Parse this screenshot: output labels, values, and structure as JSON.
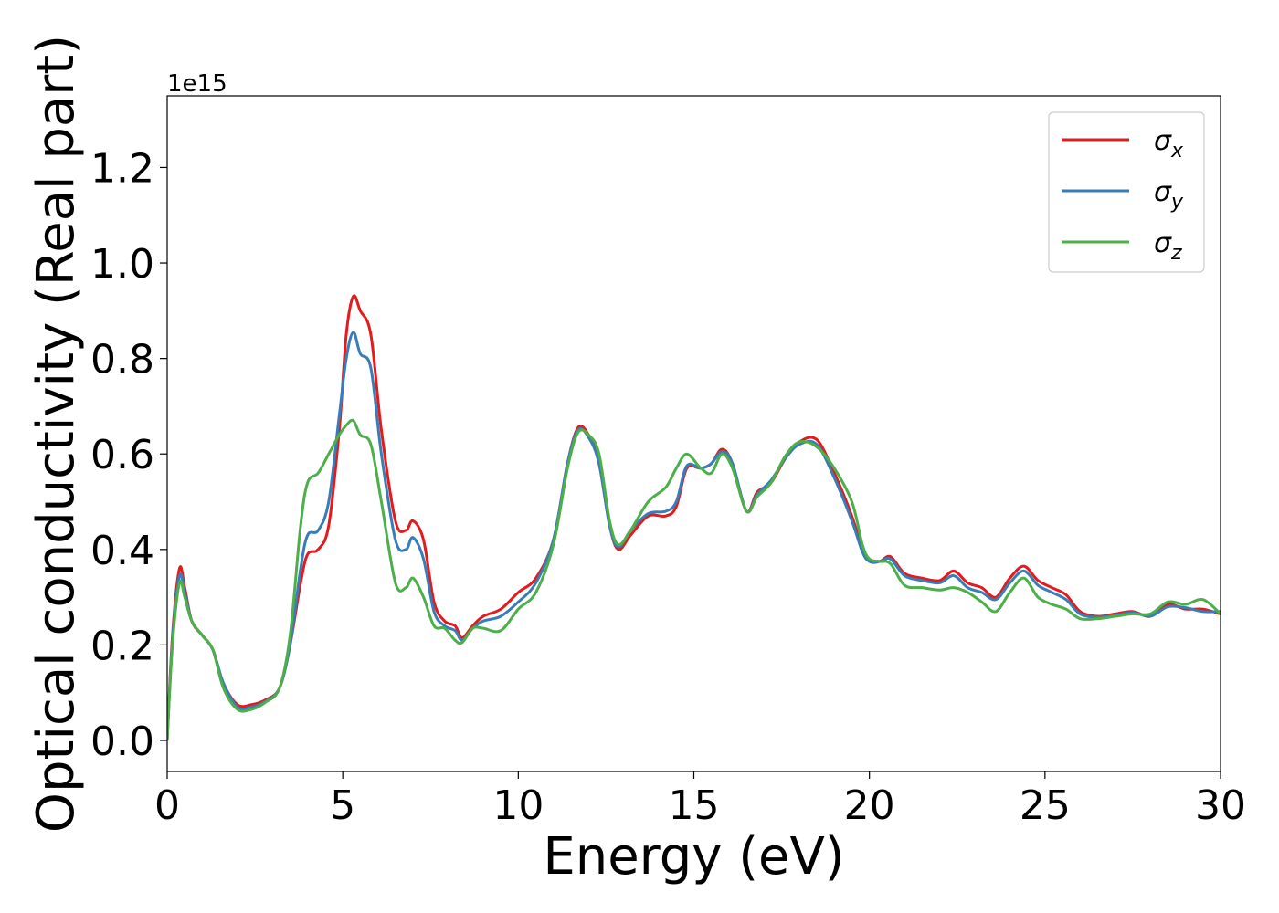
{
  "chart_data": {
    "type": "line",
    "title": "",
    "xlabel": "Energy (eV)",
    "ylabel": "Optical conductivity (Real part)",
    "y_offset_label": "1e15",
    "xlim": [
      0,
      30
    ],
    "ylim": [
      -0.065,
      1.35
    ],
    "xticks": [
      0,
      5,
      10,
      15,
      20,
      25,
      30
    ],
    "xtick_labels": [
      "0",
      "5",
      "10",
      "15",
      "20",
      "25",
      "30"
    ],
    "yticks": [
      0.0,
      0.2,
      0.4,
      0.6,
      0.8,
      1.0,
      1.2
    ],
    "ytick_labels": [
      "0.0",
      "0.2",
      "0.4",
      "0.6",
      "0.8",
      "1.0",
      "1.2"
    ],
    "grid": false,
    "legend_position": "top-right",
    "series": [
      {
        "name": "x",
        "color": "#e41a1c",
        "points": [
          [
            0,
            0
          ],
          [
            0.15,
            0.22
          ],
          [
            0.35,
            0.36
          ],
          [
            0.5,
            0.32
          ],
          [
            0.7,
            0.25
          ],
          [
            1.0,
            0.22
          ],
          [
            1.3,
            0.19
          ],
          [
            1.6,
            0.12
          ],
          [
            2.0,
            0.075
          ],
          [
            2.4,
            0.075
          ],
          [
            2.8,
            0.085
          ],
          [
            3.2,
            0.11
          ],
          [
            3.5,
            0.2
          ],
          [
            3.8,
            0.33
          ],
          [
            4.0,
            0.39
          ],
          [
            4.3,
            0.4
          ],
          [
            4.6,
            0.45
          ],
          [
            4.9,
            0.65
          ],
          [
            5.1,
            0.85
          ],
          [
            5.3,
            0.93
          ],
          [
            5.5,
            0.9
          ],
          [
            5.8,
            0.85
          ],
          [
            6.1,
            0.65
          ],
          [
            6.5,
            0.46
          ],
          [
            6.8,
            0.44
          ],
          [
            7.0,
            0.46
          ],
          [
            7.3,
            0.42
          ],
          [
            7.6,
            0.29
          ],
          [
            7.9,
            0.25
          ],
          [
            8.2,
            0.24
          ],
          [
            8.4,
            0.215
          ],
          [
            8.7,
            0.24
          ],
          [
            9.0,
            0.26
          ],
          [
            9.5,
            0.275
          ],
          [
            10.0,
            0.31
          ],
          [
            10.5,
            0.34
          ],
          [
            11.0,
            0.42
          ],
          [
            11.4,
            0.58
          ],
          [
            11.7,
            0.655
          ],
          [
            12.0,
            0.64
          ],
          [
            12.3,
            0.58
          ],
          [
            12.6,
            0.45
          ],
          [
            12.85,
            0.4
          ],
          [
            13.2,
            0.43
          ],
          [
            13.7,
            0.47
          ],
          [
            14.2,
            0.47
          ],
          [
            14.5,
            0.49
          ],
          [
            14.8,
            0.57
          ],
          [
            15.2,
            0.57
          ],
          [
            15.5,
            0.58
          ],
          [
            15.8,
            0.61
          ],
          [
            16.1,
            0.58
          ],
          [
            16.5,
            0.48
          ],
          [
            16.8,
            0.52
          ],
          [
            17.2,
            0.54
          ],
          [
            17.6,
            0.59
          ],
          [
            18.0,
            0.625
          ],
          [
            18.5,
            0.63
          ],
          [
            19.0,
            0.56
          ],
          [
            19.5,
            0.47
          ],
          [
            19.8,
            0.4
          ],
          [
            20.0,
            0.375
          ],
          [
            20.3,
            0.375
          ],
          [
            20.6,
            0.385
          ],
          [
            21.0,
            0.35
          ],
          [
            21.5,
            0.34
          ],
          [
            22.0,
            0.335
          ],
          [
            22.4,
            0.355
          ],
          [
            22.8,
            0.33
          ],
          [
            23.2,
            0.32
          ],
          [
            23.6,
            0.3
          ],
          [
            24.0,
            0.34
          ],
          [
            24.4,
            0.365
          ],
          [
            24.8,
            0.335
          ],
          [
            25.2,
            0.32
          ],
          [
            25.6,
            0.305
          ],
          [
            26.0,
            0.27
          ],
          [
            26.5,
            0.26
          ],
          [
            27.0,
            0.265
          ],
          [
            27.5,
            0.27
          ],
          [
            28.0,
            0.26
          ],
          [
            28.5,
            0.285
          ],
          [
            29.0,
            0.275
          ],
          [
            29.5,
            0.275
          ],
          [
            30.0,
            0.265
          ]
        ]
      },
      {
        "name": "y",
        "color": "#377eb8",
        "points": [
          [
            0,
            0
          ],
          [
            0.15,
            0.21
          ],
          [
            0.35,
            0.345
          ],
          [
            0.5,
            0.31
          ],
          [
            0.7,
            0.25
          ],
          [
            1.0,
            0.22
          ],
          [
            1.3,
            0.19
          ],
          [
            1.6,
            0.12
          ],
          [
            2.0,
            0.07
          ],
          [
            2.4,
            0.07
          ],
          [
            2.8,
            0.082
          ],
          [
            3.2,
            0.11
          ],
          [
            3.5,
            0.2
          ],
          [
            3.8,
            0.36
          ],
          [
            4.0,
            0.43
          ],
          [
            4.3,
            0.44
          ],
          [
            4.6,
            0.5
          ],
          [
            4.9,
            0.68
          ],
          [
            5.1,
            0.8
          ],
          [
            5.3,
            0.855
          ],
          [
            5.5,
            0.81
          ],
          [
            5.8,
            0.78
          ],
          [
            6.1,
            0.6
          ],
          [
            6.5,
            0.42
          ],
          [
            6.8,
            0.4
          ],
          [
            7.0,
            0.425
          ],
          [
            7.3,
            0.38
          ],
          [
            7.6,
            0.27
          ],
          [
            7.9,
            0.24
          ],
          [
            8.2,
            0.23
          ],
          [
            8.4,
            0.21
          ],
          [
            8.7,
            0.235
          ],
          [
            9.0,
            0.25
          ],
          [
            9.5,
            0.26
          ],
          [
            10.0,
            0.29
          ],
          [
            10.5,
            0.33
          ],
          [
            11.0,
            0.42
          ],
          [
            11.4,
            0.58
          ],
          [
            11.7,
            0.65
          ],
          [
            12.0,
            0.635
          ],
          [
            12.3,
            0.58
          ],
          [
            12.6,
            0.45
          ],
          [
            12.85,
            0.405
          ],
          [
            13.2,
            0.44
          ],
          [
            13.7,
            0.475
          ],
          [
            14.2,
            0.48
          ],
          [
            14.5,
            0.5
          ],
          [
            14.8,
            0.575
          ],
          [
            15.2,
            0.57
          ],
          [
            15.5,
            0.58
          ],
          [
            15.8,
            0.605
          ],
          [
            16.1,
            0.58
          ],
          [
            16.5,
            0.48
          ],
          [
            16.8,
            0.515
          ],
          [
            17.2,
            0.545
          ],
          [
            17.6,
            0.59
          ],
          [
            18.0,
            0.62
          ],
          [
            18.5,
            0.62
          ],
          [
            19.0,
            0.55
          ],
          [
            19.5,
            0.46
          ],
          [
            19.8,
            0.395
          ],
          [
            20.0,
            0.375
          ],
          [
            20.3,
            0.375
          ],
          [
            20.6,
            0.38
          ],
          [
            21.0,
            0.345
          ],
          [
            21.5,
            0.335
          ],
          [
            22.0,
            0.33
          ],
          [
            22.4,
            0.345
          ],
          [
            22.8,
            0.32
          ],
          [
            23.2,
            0.31
          ],
          [
            23.6,
            0.295
          ],
          [
            24.0,
            0.33
          ],
          [
            24.4,
            0.355
          ],
          [
            24.8,
            0.325
          ],
          [
            25.2,
            0.31
          ],
          [
            25.6,
            0.295
          ],
          [
            26.0,
            0.265
          ],
          [
            26.5,
            0.258
          ],
          [
            27.0,
            0.262
          ],
          [
            27.5,
            0.268
          ],
          [
            28.0,
            0.26
          ],
          [
            28.5,
            0.28
          ],
          [
            29.0,
            0.278
          ],
          [
            29.5,
            0.27
          ],
          [
            30.0,
            0.27
          ]
        ]
      },
      {
        "name": "z",
        "color": "#4daf4a",
        "points": [
          [
            0,
            0
          ],
          [
            0.15,
            0.2
          ],
          [
            0.35,
            0.33
          ],
          [
            0.5,
            0.3
          ],
          [
            0.7,
            0.25
          ],
          [
            1.0,
            0.22
          ],
          [
            1.3,
            0.19
          ],
          [
            1.6,
            0.11
          ],
          [
            2.0,
            0.065
          ],
          [
            2.4,
            0.065
          ],
          [
            2.8,
            0.08
          ],
          [
            3.2,
            0.11
          ],
          [
            3.5,
            0.22
          ],
          [
            3.8,
            0.45
          ],
          [
            4.0,
            0.54
          ],
          [
            4.3,
            0.56
          ],
          [
            4.6,
            0.6
          ],
          [
            4.9,
            0.64
          ],
          [
            5.1,
            0.66
          ],
          [
            5.3,
            0.67
          ],
          [
            5.5,
            0.64
          ],
          [
            5.8,
            0.62
          ],
          [
            6.1,
            0.5
          ],
          [
            6.5,
            0.33
          ],
          [
            6.8,
            0.32
          ],
          [
            7.0,
            0.34
          ],
          [
            7.3,
            0.3
          ],
          [
            7.6,
            0.24
          ],
          [
            7.9,
            0.235
          ],
          [
            8.2,
            0.21
          ],
          [
            8.4,
            0.205
          ],
          [
            8.7,
            0.235
          ],
          [
            9.0,
            0.235
          ],
          [
            9.5,
            0.23
          ],
          [
            10.0,
            0.275
          ],
          [
            10.5,
            0.31
          ],
          [
            11.0,
            0.41
          ],
          [
            11.4,
            0.57
          ],
          [
            11.7,
            0.645
          ],
          [
            12.0,
            0.64
          ],
          [
            12.3,
            0.6
          ],
          [
            12.6,
            0.46
          ],
          [
            12.85,
            0.41
          ],
          [
            13.2,
            0.44
          ],
          [
            13.7,
            0.5
          ],
          [
            14.2,
            0.53
          ],
          [
            14.5,
            0.57
          ],
          [
            14.8,
            0.6
          ],
          [
            15.2,
            0.57
          ],
          [
            15.5,
            0.56
          ],
          [
            15.8,
            0.6
          ],
          [
            16.1,
            0.57
          ],
          [
            16.5,
            0.48
          ],
          [
            16.8,
            0.51
          ],
          [
            17.2,
            0.54
          ],
          [
            17.6,
            0.595
          ],
          [
            18.0,
            0.625
          ],
          [
            18.5,
            0.615
          ],
          [
            19.0,
            0.57
          ],
          [
            19.5,
            0.5
          ],
          [
            19.8,
            0.41
          ],
          [
            20.0,
            0.38
          ],
          [
            20.3,
            0.375
          ],
          [
            20.6,
            0.37
          ],
          [
            21.0,
            0.325
          ],
          [
            21.5,
            0.32
          ],
          [
            22.0,
            0.315
          ],
          [
            22.4,
            0.32
          ],
          [
            22.8,
            0.31
          ],
          [
            23.2,
            0.29
          ],
          [
            23.6,
            0.27
          ],
          [
            24.0,
            0.31
          ],
          [
            24.4,
            0.34
          ],
          [
            24.8,
            0.3
          ],
          [
            25.2,
            0.285
          ],
          [
            25.6,
            0.275
          ],
          [
            26.0,
            0.255
          ],
          [
            26.5,
            0.255
          ],
          [
            27.0,
            0.26
          ],
          [
            27.5,
            0.265
          ],
          [
            28.0,
            0.265
          ],
          [
            28.5,
            0.29
          ],
          [
            29.0,
            0.285
          ],
          [
            29.5,
            0.295
          ],
          [
            30.0,
            0.265
          ]
        ]
      }
    ]
  }
}
